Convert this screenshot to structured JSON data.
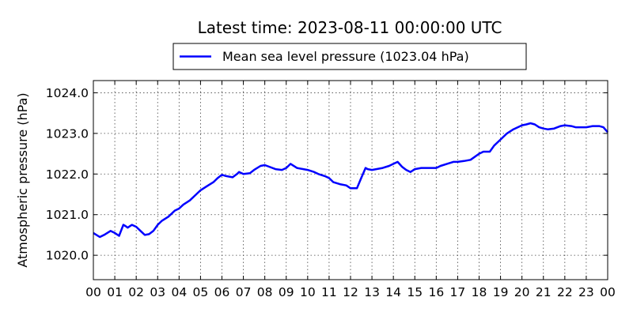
{
  "chart_data": {
    "type": "line",
    "title": "Latest time: 2023-08-11 00:00:00 UTC",
    "ylabel": "Atmospheric pressure (hPa)",
    "xlabel": "",
    "legend": {
      "position": "top-center",
      "entries": [
        "Mean sea level pressure (1023.04 hPa)"
      ]
    },
    "grid": true,
    "xlim": [
      0,
      24
    ],
    "ylim": [
      1019.4,
      1024.3
    ],
    "x_tick_labels": [
      "00",
      "01",
      "02",
      "03",
      "04",
      "05",
      "06",
      "07",
      "08",
      "09",
      "10",
      "11",
      "12",
      "13",
      "14",
      "15",
      "16",
      "17",
      "18",
      "19",
      "20",
      "21",
      "22",
      "23",
      "00"
    ],
    "y_ticks": [
      1020.0,
      1021.0,
      1022.0,
      1023.0,
      1024.0
    ],
    "y_tick_labels": [
      "1020.0",
      "1021.0",
      "1022.0",
      "1023.0",
      "1024.0"
    ],
    "series": [
      {
        "name": "Mean sea level pressure (1023.04 hPa)",
        "color": "#0000ff",
        "x": [
          0.0,
          0.3,
          0.5,
          0.8,
          1.0,
          1.2,
          1.4,
          1.5,
          1.6,
          1.8,
          2.0,
          2.2,
          2.4,
          2.6,
          2.8,
          3.0,
          3.2,
          3.5,
          3.8,
          4.0,
          4.2,
          4.5,
          4.8,
          5.0,
          5.3,
          5.6,
          5.8,
          6.0,
          6.2,
          6.5,
          6.7,
          6.8,
          7.0,
          7.3,
          7.5,
          7.8,
          8.0,
          8.2,
          8.5,
          8.8,
          9.0,
          9.2,
          9.5,
          9.8,
          10.0,
          10.3,
          10.5,
          10.8,
          11.0,
          11.2,
          11.5,
          11.8,
          12.0,
          12.3,
          12.5,
          12.7,
          12.8,
          13.0,
          13.2,
          13.5,
          13.8,
          14.0,
          14.2,
          14.4,
          14.6,
          14.8,
          15.0,
          15.3,
          15.6,
          16.0,
          16.2,
          16.5,
          16.8,
          17.0,
          17.3,
          17.6,
          18.0,
          18.2,
          18.5,
          18.7,
          19.0,
          19.3,
          19.6,
          20.0,
          20.2,
          20.4,
          20.6,
          20.8,
          21.0,
          21.2,
          21.5,
          21.8,
          22.0,
          22.3,
          22.5,
          22.8,
          23.0,
          23.3,
          23.6,
          23.8,
          24.0
        ],
        "values": [
          1020.55,
          1020.45,
          1020.5,
          1020.6,
          1020.55,
          1020.48,
          1020.75,
          1020.72,
          1020.68,
          1020.75,
          1020.7,
          1020.6,
          1020.5,
          1020.52,
          1020.6,
          1020.75,
          1020.85,
          1020.95,
          1021.1,
          1021.15,
          1021.25,
          1021.35,
          1021.5,
          1021.6,
          1021.7,
          1021.8,
          1021.9,
          1021.98,
          1021.95,
          1021.92,
          1022.0,
          1022.05,
          1022.0,
          1022.02,
          1022.1,
          1022.2,
          1022.22,
          1022.18,
          1022.12,
          1022.1,
          1022.15,
          1022.25,
          1022.15,
          1022.12,
          1022.1,
          1022.05,
          1022.0,
          1021.95,
          1021.9,
          1021.8,
          1021.75,
          1021.72,
          1021.65,
          1021.65,
          1021.9,
          1022.15,
          1022.12,
          1022.1,
          1022.12,
          1022.15,
          1022.2,
          1022.25,
          1022.3,
          1022.18,
          1022.1,
          1022.05,
          1022.12,
          1022.15,
          1022.15,
          1022.15,
          1022.2,
          1022.25,
          1022.3,
          1022.3,
          1022.32,
          1022.35,
          1022.5,
          1022.55,
          1022.55,
          1022.7,
          1022.85,
          1023.0,
          1023.1,
          1023.2,
          1023.22,
          1023.25,
          1023.22,
          1023.15,
          1023.12,
          1023.1,
          1023.12,
          1023.18,
          1023.2,
          1023.18,
          1023.15,
          1023.15,
          1023.15,
          1023.18,
          1023.18,
          1023.15,
          1023.03
        ]
      }
    ]
  }
}
